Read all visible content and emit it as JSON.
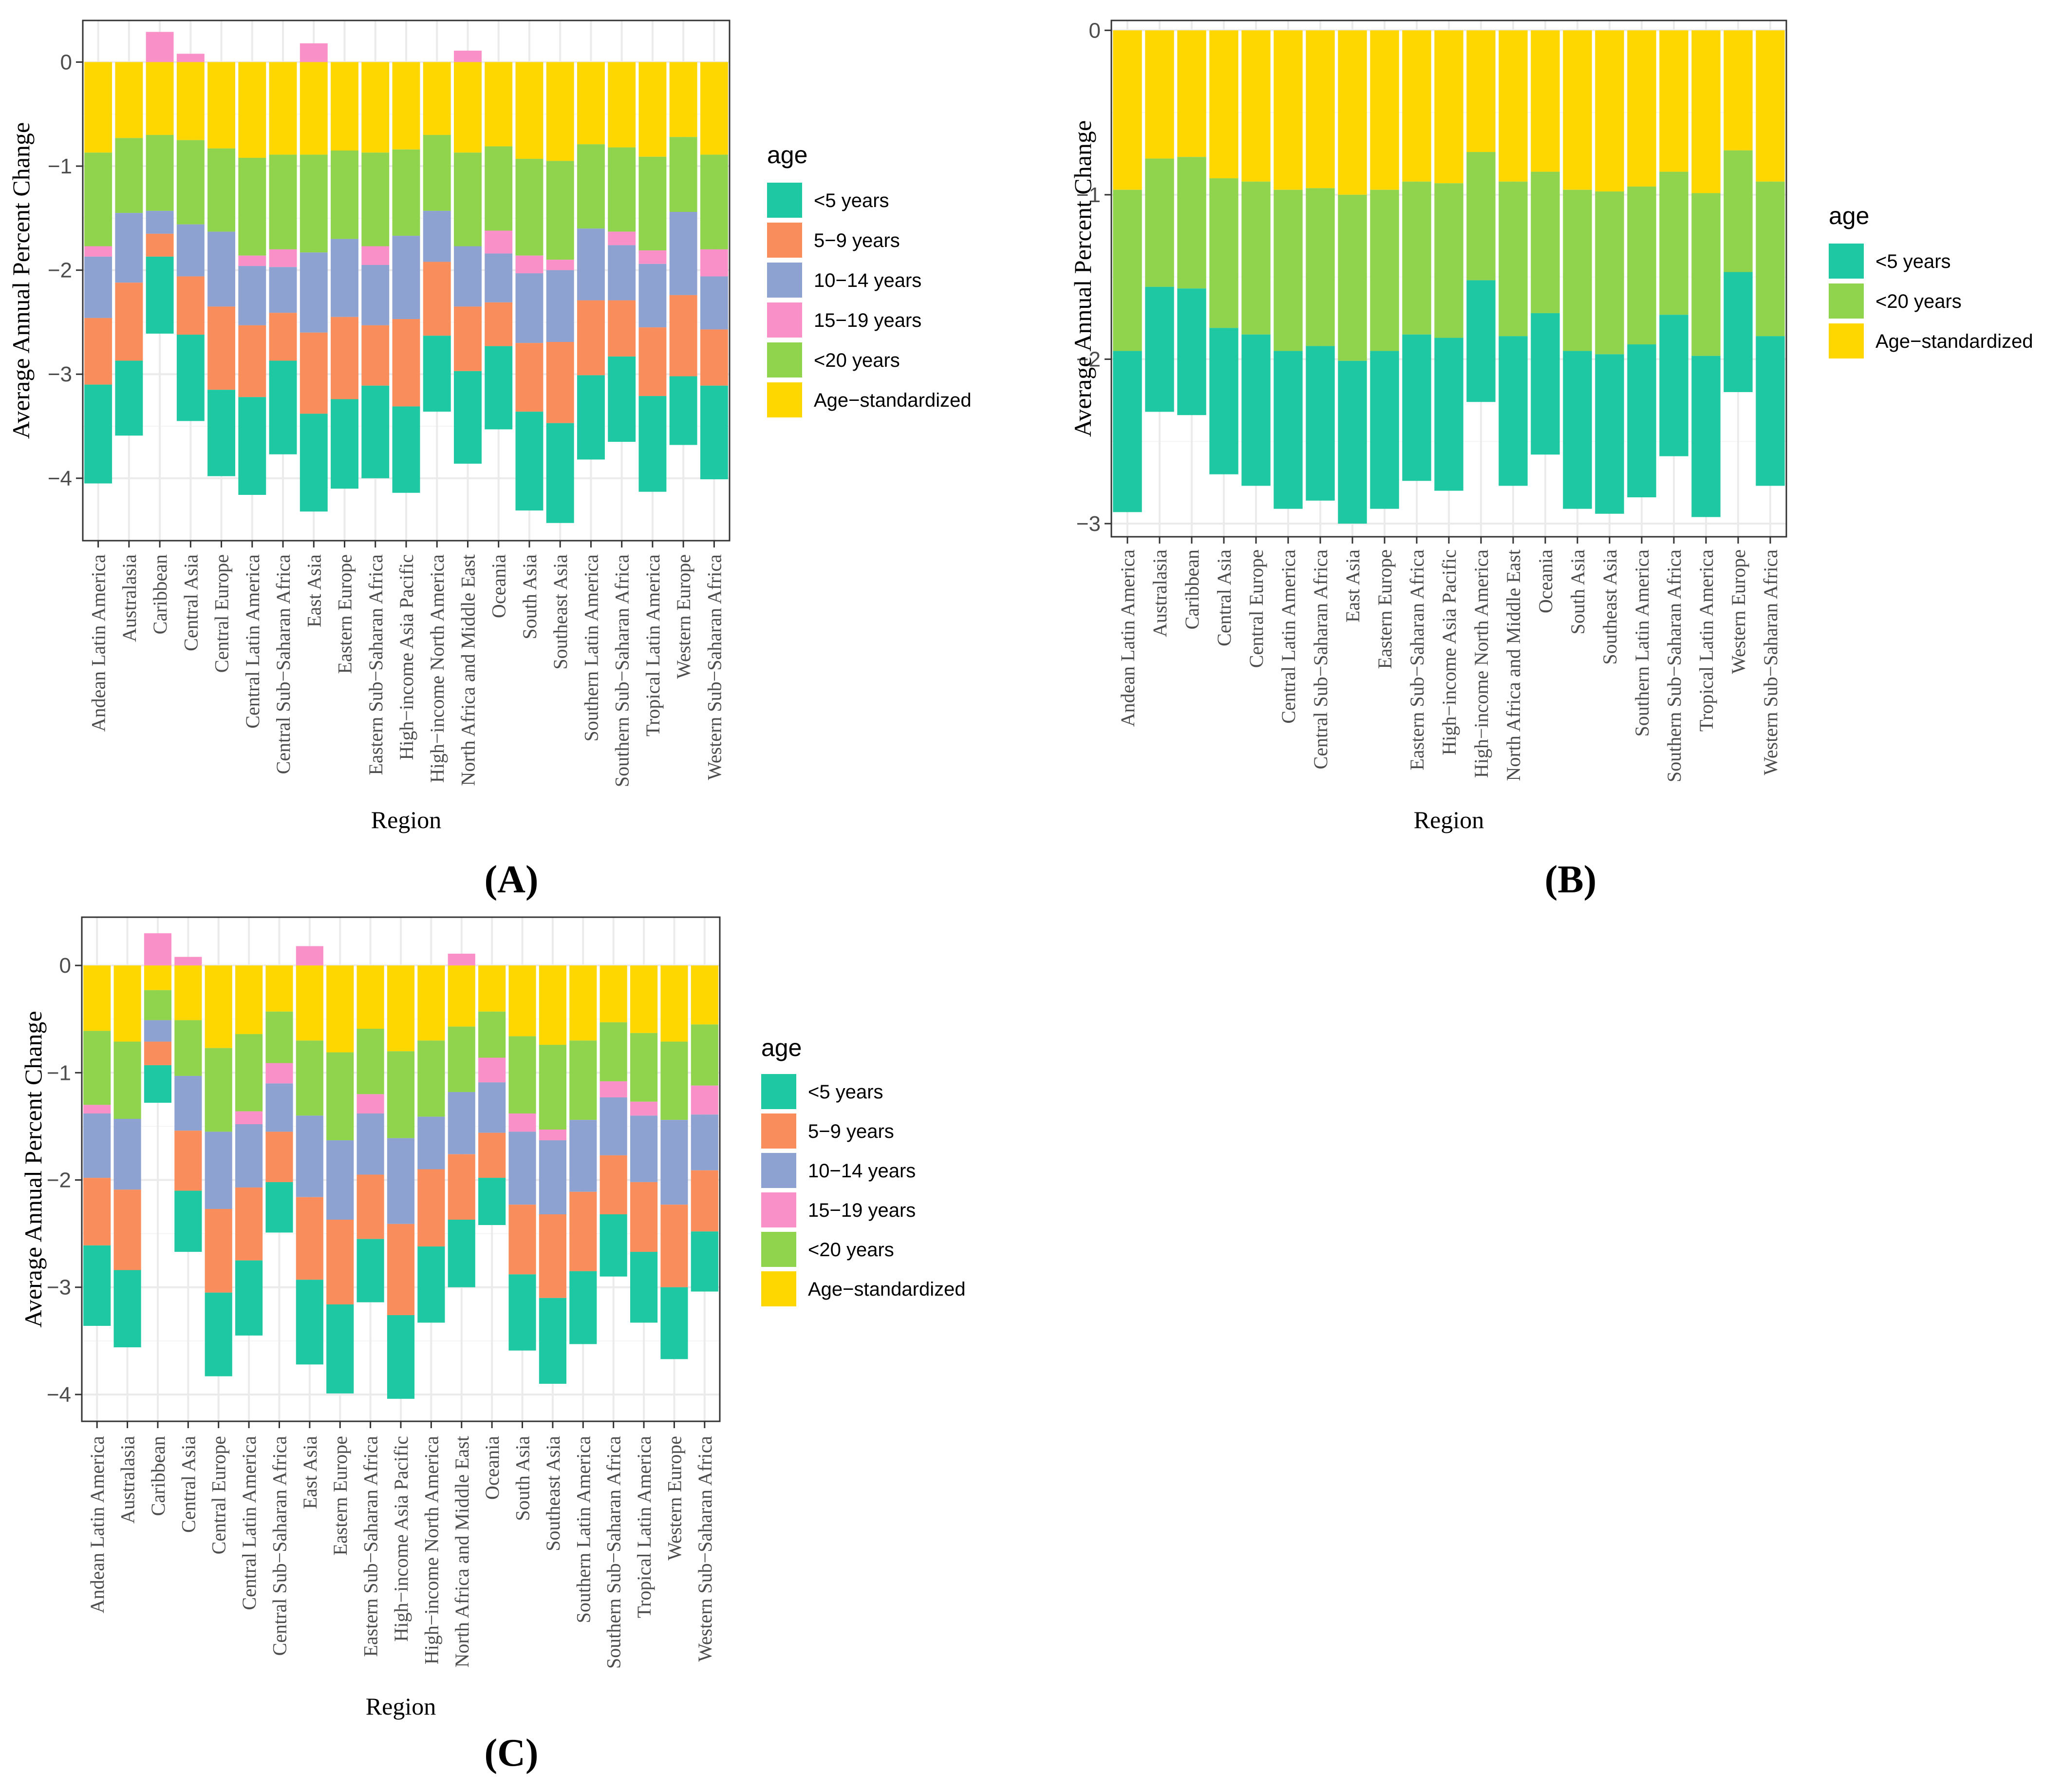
{
  "figure": {
    "panel_labels": [
      "(A)",
      "(B)",
      "(C)"
    ]
  },
  "colors": {
    "<5 years": "#1DC8A2",
    "5-9 years": "#F98D5C",
    "10-14 years": "#8DA2D0",
    "15-19 years": "#F990C8",
    "<20 years": "#8FD44C",
    "Age-standardized": "#FFD700",
    "panel_bg": "#FFFFFF",
    "grid_major": "#EBEBEB",
    "grid_minor": "#F5F5F5",
    "frame": "#333333",
    "axis_text": "#4D4D4D"
  },
  "chart_data": [
    {
      "type": "bar",
      "panel": "(A)",
      "xlabel": "Region",
      "ylabel": "Average Annual Percent Change",
      "ylim": [
        -4.6,
        0.4
      ],
      "yticks": [
        0,
        -1,
        -2,
        -3,
        -4
      ],
      "ytick_labels": [
        "0",
        "−1",
        "−2",
        "−3",
        "−4"
      ],
      "legend_title": "age",
      "legend": [
        "<5 years",
        "5−9 years",
        "10−14 years",
        "15−19 years",
        "<20 years",
        "Age−standardized"
      ],
      "categories": [
        "Andean Latin America",
        "Australasia",
        "Caribbean",
        "Central Asia",
        "Central Europe",
        "Central Latin America",
        "Central Sub−Saharan Africa",
        "East Asia",
        "Eastern Europe",
        "Eastern Sub−Saharan Africa",
        "High−income Asia Pacific",
        "High−income North America",
        "North Africa and Middle East",
        "Oceania",
        "South Asia",
        "Southeast Asia",
        "Southern Latin America",
        "Southern Sub−Saharan Africa",
        "Tropical Latin America",
        "Western Europe",
        "Western Sub−Saharan Africa"
      ],
      "series": [
        {
          "name": "<5 years",
          "key": "<5 years",
          "values": [
            -0.95,
            -0.72,
            -0.74,
            -0.83,
            -0.83,
            -0.94,
            -0.9,
            -0.94,
            -0.86,
            -0.89,
            -0.83,
            -0.73,
            -0.89,
            -0.8,
            -0.95,
            -0.96,
            -0.81,
            -0.82,
            -0.92,
            -0.66,
            -0.9
          ]
        },
        {
          "name": "5−9 years",
          "key": "5-9 years",
          "values": [
            -0.64,
            -0.75,
            -0.22,
            -0.56,
            -0.8,
            -0.69,
            -0.46,
            -0.78,
            -0.79,
            -0.58,
            -0.84,
            -0.71,
            -0.62,
            -0.42,
            -0.66,
            -0.78,
            -0.72,
            -0.54,
            -0.66,
            -0.78,
            -0.54
          ]
        },
        {
          "name": "10−14 years",
          "key": "10-14 years",
          "values": [
            -0.59,
            -0.67,
            -0.22,
            -0.5,
            -0.72,
            -0.57,
            -0.44,
            -0.77,
            -0.75,
            -0.58,
            -0.8,
            -0.49,
            -0.58,
            -0.47,
            -0.67,
            -0.69,
            -0.69,
            -0.53,
            -0.61,
            -0.8,
            -0.51
          ]
        },
        {
          "name": "15−19 years",
          "key": "15-19 years",
          "values": [
            -0.1,
            0.0,
            0.29,
            0.08,
            0.0,
            -0.1,
            -0.17,
            0.18,
            0.0,
            -0.18,
            0.0,
            0.0,
            0.11,
            -0.22,
            -0.17,
            -0.1,
            0.0,
            -0.13,
            -0.13,
            0.0,
            -0.26
          ]
        },
        {
          "name": "<20 years",
          "key": "<20 years",
          "values": [
            -0.9,
            -0.72,
            -0.73,
            -0.81,
            -0.8,
            -0.94,
            -0.91,
            -0.94,
            -0.85,
            -0.9,
            -0.83,
            -0.73,
            -0.9,
            -0.81,
            -0.93,
            -0.95,
            -0.81,
            -0.81,
            -0.9,
            -0.72,
            -0.91
          ]
        },
        {
          "name": "Age−standardized",
          "key": "Age-standardized",
          "values": [
            -0.87,
            -0.73,
            -0.7,
            -0.75,
            -0.83,
            -0.92,
            -0.89,
            -0.89,
            -0.85,
            -0.87,
            -0.84,
            -0.7,
            -0.87,
            -0.81,
            -0.93,
            -0.95,
            -0.79,
            -0.82,
            -0.91,
            -0.72,
            -0.89
          ]
        }
      ]
    },
    {
      "type": "bar",
      "panel": "(B)",
      "xlabel": "Region",
      "ylabel": "Average Annual Percent Change",
      "ylim": [
        -3.08,
        0.06
      ],
      "yticks": [
        0,
        -1,
        -2,
        -3
      ],
      "ytick_labels": [
        "0",
        "−1",
        "−2",
        "−3"
      ],
      "legend_title": "age",
      "legend": [
        "<5 years",
        "<20 years",
        "Age−standardized"
      ],
      "categories": [
        "Andean Latin America",
        "Australasia",
        "Caribbean",
        "Central Asia",
        "Central Europe",
        "Central Latin America",
        "Central Sub−Saharan Africa",
        "East Asia",
        "Eastern Europe",
        "Eastern Sub−Saharan Africa",
        "High−income Asia Pacific",
        "High−income North America",
        "North Africa and Middle East",
        "Oceania",
        "South Asia",
        "Southeast Asia",
        "Southern Latin America",
        "Southern Sub−Saharan Africa",
        "Tropical Latin America",
        "Western Europe",
        "Western Sub−Saharan Africa"
      ],
      "series": [
        {
          "name": "<5 years",
          "key": "<5 years",
          "values": [
            -0.98,
            -0.76,
            -0.77,
            -0.89,
            -0.92,
            -0.96,
            -0.94,
            -0.99,
            -0.96,
            -0.89,
            -0.93,
            -0.74,
            -0.91,
            -0.86,
            -0.96,
            -0.97,
            -0.93,
            -0.86,
            -0.98,
            -0.73,
            -0.91
          ]
        },
        {
          "name": "<20 years",
          "key": "<20 years",
          "values": [
            -0.98,
            -0.78,
            -0.8,
            -0.91,
            -0.93,
            -0.98,
            -0.96,
            -1.01,
            -0.98,
            -0.93,
            -0.94,
            -0.78,
            -0.94,
            -0.86,
            -0.98,
            -0.99,
            -0.96,
            -0.87,
            -0.99,
            -0.74,
            -0.94
          ]
        },
        {
          "name": "Age−standardized",
          "key": "Age-standardized",
          "values": [
            -0.97,
            -0.78,
            -0.77,
            -0.9,
            -0.92,
            -0.97,
            -0.96,
            -1.0,
            -0.97,
            -0.92,
            -0.93,
            -0.74,
            -0.92,
            -0.86,
            -0.97,
            -0.98,
            -0.95,
            -0.86,
            -0.99,
            -0.73,
            -0.92
          ]
        }
      ]
    },
    {
      "type": "bar",
      "panel": "(C)",
      "xlabel": "Region",
      "ylabel": "Average Annual Percent Change",
      "ylim": [
        -4.25,
        0.45
      ],
      "yticks": [
        0,
        -1,
        -2,
        -3,
        -4
      ],
      "ytick_labels": [
        "0",
        "−1",
        "−2",
        "−3",
        "−4"
      ],
      "legend_title": "age",
      "legend": [
        "<5 years",
        "5−9 years",
        "10−14 years",
        "15−19 years",
        "<20 years",
        "Age−standardized"
      ],
      "categories": [
        "Andean Latin America",
        "Australasia",
        "Caribbean",
        "Central Asia",
        "Central Europe",
        "Central Latin America",
        "Central Sub−Saharan Africa",
        "East Asia",
        "Eastern Europe",
        "Eastern Sub−Saharan Africa",
        "High−income Asia Pacific",
        "High−income North America",
        "North Africa and Middle East",
        "Oceania",
        "South Asia",
        "Southeast Asia",
        "Southern Latin America",
        "Southern Sub−Saharan Africa",
        "Tropical Latin America",
        "Western Europe",
        "Western Sub−Saharan Africa"
      ],
      "series": [
        {
          "name": "<5 years",
          "key": "<5 years",
          "values": [
            -0.75,
            -0.72,
            -0.35,
            -0.57,
            -0.78,
            -0.7,
            -0.47,
            -0.79,
            -0.83,
            -0.59,
            -0.78,
            -0.71,
            -0.63,
            -0.44,
            -0.71,
            -0.8,
            -0.68,
            -0.58,
            -0.66,
            -0.67,
            -0.56
          ]
        },
        {
          "name": "5−9 years",
          "key": "5-9 years",
          "values": [
            -0.63,
            -0.75,
            -0.22,
            -0.56,
            -0.78,
            -0.68,
            -0.47,
            -0.77,
            -0.79,
            -0.6,
            -0.85,
            -0.72,
            -0.61,
            -0.42,
            -0.65,
            -0.78,
            -0.74,
            -0.55,
            -0.65,
            -0.77,
            -0.57
          ]
        },
        {
          "name": "10−14 years",
          "key": "10-14 years",
          "values": [
            -0.6,
            -0.66,
            -0.2,
            -0.51,
            -0.72,
            -0.59,
            -0.45,
            -0.76,
            -0.74,
            -0.57,
            -0.8,
            -0.49,
            -0.58,
            -0.47,
            -0.68,
            -0.69,
            -0.67,
            -0.54,
            -0.62,
            -0.79,
            -0.52
          ]
        },
        {
          "name": "15−19 years",
          "key": "15-19 years",
          "values": [
            -0.08,
            0.0,
            0.3,
            0.08,
            0.0,
            -0.12,
            -0.19,
            0.18,
            0.0,
            -0.18,
            0.0,
            0.0,
            0.11,
            -0.23,
            -0.17,
            -0.1,
            0.0,
            -0.15,
            -0.13,
            0.0,
            -0.27
          ]
        },
        {
          "name": "<20 years",
          "key": "<20 years",
          "values": [
            -0.69,
            -0.72,
            -0.28,
            -0.52,
            -0.78,
            -0.72,
            -0.48,
            -0.7,
            -0.82,
            -0.61,
            -0.81,
            -0.71,
            -0.61,
            -0.43,
            -0.72,
            -0.79,
            -0.74,
            -0.55,
            -0.64,
            -0.73,
            -0.57
          ]
        },
        {
          "name": "Age−standardized",
          "key": "Age-standardized",
          "values": [
            -0.61,
            -0.71,
            -0.23,
            -0.51,
            -0.77,
            -0.64,
            -0.43,
            -0.7,
            -0.81,
            -0.59,
            -0.8,
            -0.7,
            -0.57,
            -0.43,
            -0.66,
            -0.74,
            -0.7,
            -0.53,
            -0.63,
            -0.71,
            -0.55
          ]
        }
      ]
    }
  ]
}
